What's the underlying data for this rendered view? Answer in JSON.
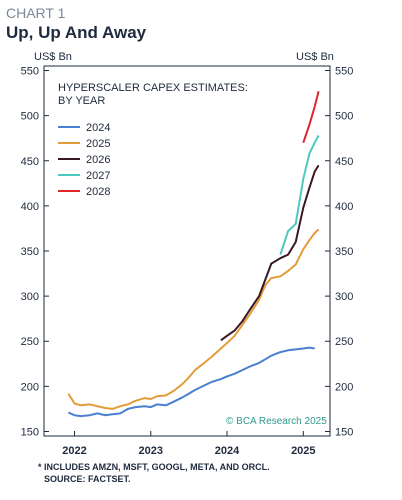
{
  "header": {
    "kicker": "CHART 1",
    "title": "Up, Up And Away"
  },
  "footnote": {
    "line1": "* INCLUDES AMZN, MSFT, GOOGL, META, AND ORCL.",
    "line2": "SOURCE: FACTSET."
  },
  "watermark": "© BCA Research 2025",
  "chart_data": {
    "type": "line",
    "title": "HYPERSCALER CAPEX ESTIMATES:",
    "subtitle": "BY YEAR",
    "ylabel_left": "US$ Bn",
    "ylabel_right": "US$ Bn",
    "ylim": [
      145,
      555
    ],
    "yticks": [
      150,
      200,
      250,
      300,
      350,
      400,
      450,
      500,
      550
    ],
    "xlim": [
      2021.6,
      2025.35
    ],
    "xticks": [
      {
        "value": 2022,
        "label": "2022"
      },
      {
        "value": 2023,
        "label": "2023"
      },
      {
        "value": 2024,
        "label": "2024"
      },
      {
        "value": 2025,
        "label": "2025"
      }
    ],
    "grid": false,
    "legend_position": "top-left",
    "series": [
      {
        "name": "2024",
        "color": "#4a7fd1",
        "points": [
          [
            2021.92,
            171
          ],
          [
            2022.0,
            168
          ],
          [
            2022.08,
            167
          ],
          [
            2022.2,
            168
          ],
          [
            2022.3,
            170
          ],
          [
            2022.4,
            168
          ],
          [
            2022.5,
            169
          ],
          [
            2022.6,
            170
          ],
          [
            2022.7,
            175
          ],
          [
            2022.8,
            177
          ],
          [
            2022.92,
            178
          ],
          [
            2023.0,
            177
          ],
          [
            2023.08,
            180
          ],
          [
            2023.2,
            179
          ],
          [
            2023.3,
            183
          ],
          [
            2023.42,
            188
          ],
          [
            2023.5,
            192
          ],
          [
            2023.58,
            196
          ],
          [
            2023.7,
            201
          ],
          [
            2023.8,
            205
          ],
          [
            2023.92,
            208
          ],
          [
            2024.0,
            211
          ],
          [
            2024.1,
            214
          ],
          [
            2024.2,
            218
          ],
          [
            2024.3,
            222
          ],
          [
            2024.42,
            226
          ],
          [
            2024.5,
            230
          ],
          [
            2024.58,
            234
          ],
          [
            2024.7,
            238
          ],
          [
            2024.8,
            240
          ],
          [
            2024.9,
            241
          ],
          [
            2025.0,
            242
          ],
          [
            2025.08,
            243
          ],
          [
            2025.15,
            242
          ]
        ]
      },
      {
        "name": "2025",
        "color": "#e39c3b",
        "points": [
          [
            2021.92,
            192
          ],
          [
            2022.0,
            181
          ],
          [
            2022.08,
            179
          ],
          [
            2022.2,
            180
          ],
          [
            2022.3,
            178
          ],
          [
            2022.4,
            176
          ],
          [
            2022.5,
            175
          ],
          [
            2022.6,
            178
          ],
          [
            2022.7,
            180
          ],
          [
            2022.8,
            184
          ],
          [
            2022.92,
            187
          ],
          [
            2023.0,
            186
          ],
          [
            2023.08,
            189
          ],
          [
            2023.2,
            190
          ],
          [
            2023.3,
            195
          ],
          [
            2023.42,
            203
          ],
          [
            2023.5,
            210
          ],
          [
            2023.58,
            218
          ],
          [
            2023.7,
            226
          ],
          [
            2023.8,
            233
          ],
          [
            2023.92,
            242
          ],
          [
            2024.0,
            248
          ],
          [
            2024.1,
            256
          ],
          [
            2024.2,
            268
          ],
          [
            2024.3,
            280
          ],
          [
            2024.42,
            296
          ],
          [
            2024.5,
            312
          ],
          [
            2024.58,
            320
          ],
          [
            2024.7,
            322
          ],
          [
            2024.8,
            328
          ],
          [
            2024.9,
            335
          ],
          [
            2025.0,
            352
          ],
          [
            2025.08,
            362
          ],
          [
            2025.15,
            370
          ],
          [
            2025.2,
            374
          ]
        ]
      },
      {
        "name": "2026",
        "color": "#3a1824",
        "points": [
          [
            2023.92,
            251
          ],
          [
            2024.0,
            256
          ],
          [
            2024.1,
            262
          ],
          [
            2024.2,
            272
          ],
          [
            2024.3,
            285
          ],
          [
            2024.42,
            300
          ],
          [
            2024.5,
            318
          ],
          [
            2024.58,
            336
          ],
          [
            2024.7,
            342
          ],
          [
            2024.8,
            346
          ],
          [
            2024.9,
            360
          ],
          [
            2025.0,
            398
          ],
          [
            2025.08,
            420
          ],
          [
            2025.15,
            438
          ],
          [
            2025.2,
            445
          ]
        ]
      },
      {
        "name": "2027",
        "color": "#4cc9c0",
        "points": [
          [
            2024.7,
            346
          ],
          [
            2024.8,
            372
          ],
          [
            2024.9,
            380
          ],
          [
            2025.0,
            430
          ],
          [
            2025.08,
            458
          ],
          [
            2025.15,
            470
          ],
          [
            2025.2,
            478
          ]
        ]
      },
      {
        "name": "2028",
        "color": "#e0262a",
        "points": [
          [
            2025.0,
            470
          ],
          [
            2025.08,
            490
          ],
          [
            2025.15,
            510
          ],
          [
            2025.2,
            527
          ]
        ]
      }
    ]
  }
}
